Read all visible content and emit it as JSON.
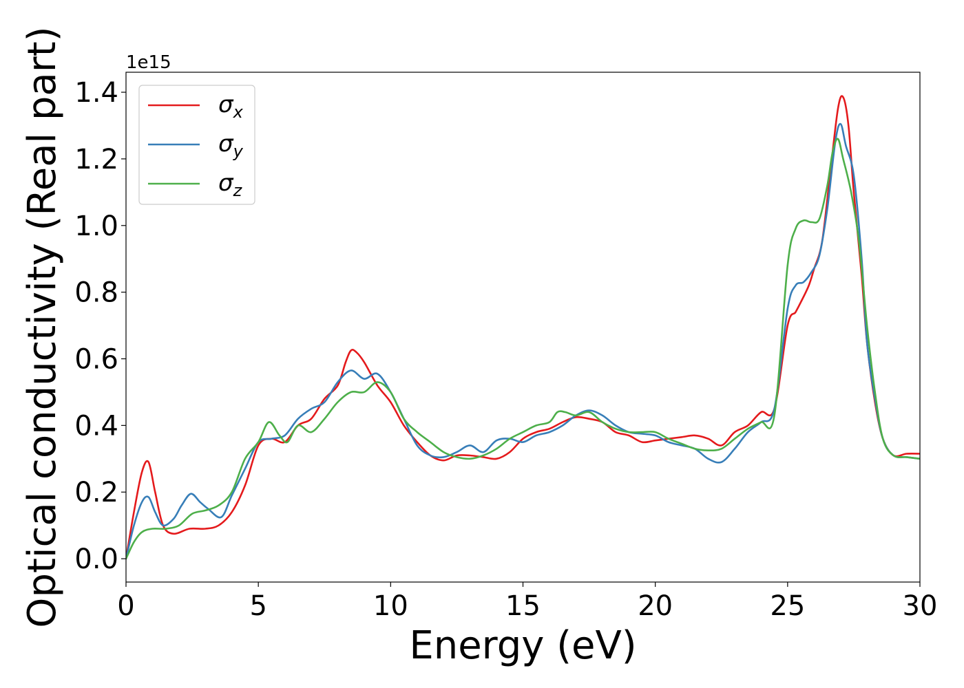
{
  "chart_data": {
    "type": "line",
    "xlabel": "Energy (eV)",
    "ylabel": "Optical conductivity (Real part)",
    "y_offset_label": "1e15",
    "xlim": [
      0,
      30
    ],
    "ylim": [
      -0.07,
      1.46
    ],
    "y_scale_factor": 1000000000000000.0,
    "grid": false,
    "legend_position": "top-left",
    "x_ticks": [
      0,
      5,
      10,
      15,
      20,
      25,
      30
    ],
    "x_tick_labels": [
      "0",
      "5",
      "10",
      "15",
      "20",
      "25",
      "30"
    ],
    "y_ticks": [
      0.0,
      0.2,
      0.4,
      0.6,
      0.8,
      1.0,
      1.2,
      1.4
    ],
    "y_tick_labels": [
      "0.0",
      "0.2",
      "0.4",
      "0.6",
      "0.8",
      "1.0",
      "1.2",
      "1.4"
    ],
    "series": [
      {
        "name": "σx",
        "symbol": "σ",
        "subscript": "x",
        "color": "#e41a1c",
        "x": [
          0,
          0.3,
          0.6,
          0.85,
          1.1,
          1.4,
          1.8,
          2.4,
          3.0,
          3.5,
          4.0,
          4.5,
          5.0,
          5.5,
          6.0,
          6.5,
          7.0,
          7.5,
          8.0,
          8.3,
          8.5,
          8.7,
          9.0,
          9.5,
          10.0,
          10.5,
          11.0,
          11.5,
          12.0,
          12.5,
          13.0,
          13.5,
          14.0,
          14.5,
          15.0,
          15.5,
          16.0,
          16.5,
          17.0,
          17.5,
          18.0,
          18.5,
          19.0,
          19.5,
          20.0,
          20.5,
          21.0,
          21.5,
          22.0,
          22.5,
          23.0,
          23.5,
          24.0,
          24.5,
          25.0,
          25.3,
          25.5,
          25.8,
          26.0,
          26.3,
          26.6,
          26.9,
          27.1,
          27.3,
          27.5,
          27.8,
          28.0,
          28.3,
          28.6,
          29.0,
          29.5,
          30.0
        ],
        "y": [
          0.0,
          0.14,
          0.26,
          0.29,
          0.2,
          0.1,
          0.075,
          0.09,
          0.09,
          0.1,
          0.14,
          0.22,
          0.34,
          0.36,
          0.35,
          0.4,
          0.42,
          0.48,
          0.52,
          0.59,
          0.625,
          0.62,
          0.59,
          0.52,
          0.47,
          0.4,
          0.35,
          0.31,
          0.295,
          0.31,
          0.31,
          0.305,
          0.3,
          0.32,
          0.36,
          0.38,
          0.39,
          0.41,
          0.425,
          0.42,
          0.41,
          0.38,
          0.37,
          0.35,
          0.355,
          0.36,
          0.365,
          0.37,
          0.36,
          0.34,
          0.38,
          0.4,
          0.44,
          0.45,
          0.7,
          0.74,
          0.77,
          0.82,
          0.87,
          0.95,
          1.15,
          1.35,
          1.385,
          1.3,
          1.1,
          0.85,
          0.65,
          0.47,
          0.36,
          0.31,
          0.315,
          0.315
        ]
      },
      {
        "name": "σy",
        "symbol": "σ",
        "subscript": "y",
        "color": "#377eb8",
        "x": [
          0,
          0.3,
          0.6,
          0.85,
          1.1,
          1.4,
          1.8,
          2.1,
          2.45,
          2.8,
          3.1,
          3.6,
          4.0,
          4.5,
          5.0,
          5.5,
          6.0,
          6.5,
          7.0,
          7.5,
          8.0,
          8.5,
          9.0,
          9.5,
          10.0,
          10.5,
          11.0,
          11.5,
          12.0,
          12.5,
          13.0,
          13.5,
          14.0,
          14.5,
          15.0,
          15.5,
          16.0,
          16.5,
          17.0,
          17.5,
          18.0,
          18.5,
          19.0,
          19.5,
          20.0,
          20.5,
          21.0,
          21.5,
          22.0,
          22.5,
          23.0,
          23.5,
          24.0,
          24.5,
          25.0,
          25.3,
          25.6,
          25.9,
          26.2,
          26.5,
          26.8,
          27.0,
          27.2,
          27.5,
          27.8,
          28.0,
          28.3,
          28.6,
          29.0,
          29.5,
          30.0
        ],
        "y": [
          0.0,
          0.1,
          0.17,
          0.185,
          0.14,
          0.1,
          0.12,
          0.16,
          0.195,
          0.17,
          0.15,
          0.125,
          0.19,
          0.27,
          0.35,
          0.36,
          0.37,
          0.42,
          0.45,
          0.47,
          0.53,
          0.565,
          0.54,
          0.555,
          0.5,
          0.42,
          0.34,
          0.31,
          0.305,
          0.32,
          0.34,
          0.32,
          0.355,
          0.36,
          0.35,
          0.37,
          0.38,
          0.4,
          0.43,
          0.445,
          0.43,
          0.4,
          0.38,
          0.375,
          0.37,
          0.35,
          0.34,
          0.33,
          0.3,
          0.29,
          0.33,
          0.38,
          0.41,
          0.45,
          0.75,
          0.82,
          0.83,
          0.86,
          0.91,
          1.05,
          1.25,
          1.305,
          1.24,
          1.15,
          0.9,
          0.65,
          0.48,
          0.36,
          0.31,
          0.305,
          0.3
        ]
      },
      {
        "name": "σz",
        "symbol": "σ",
        "subscript": "z",
        "color": "#4daf4a",
        "x": [
          0,
          0.3,
          0.6,
          1.0,
          1.5,
          2.0,
          2.5,
          3.0,
          3.5,
          4.0,
          4.5,
          5.0,
          5.4,
          5.8,
          6.1,
          6.5,
          7.0,
          7.5,
          8.0,
          8.5,
          9.0,
          9.5,
          10.0,
          10.5,
          11.0,
          11.5,
          12.0,
          12.5,
          13.0,
          13.5,
          14.0,
          14.5,
          15.0,
          15.5,
          16.0,
          16.3,
          16.6,
          17.0,
          17.5,
          18.0,
          18.5,
          19.0,
          19.5,
          20.0,
          20.5,
          21.0,
          21.5,
          22.0,
          22.5,
          23.0,
          23.5,
          24.0,
          24.5,
          25.0,
          25.3,
          25.6,
          25.9,
          26.2,
          26.5,
          26.7,
          26.9,
          27.1,
          27.4,
          27.7,
          28.0,
          28.3,
          28.6,
          29.0,
          29.5,
          30.0
        ],
        "y": [
          0.0,
          0.05,
          0.08,
          0.09,
          0.09,
          0.1,
          0.135,
          0.145,
          0.16,
          0.2,
          0.3,
          0.35,
          0.41,
          0.37,
          0.35,
          0.4,
          0.38,
          0.42,
          0.47,
          0.5,
          0.5,
          0.53,
          0.5,
          0.42,
          0.38,
          0.35,
          0.32,
          0.305,
          0.3,
          0.31,
          0.33,
          0.36,
          0.38,
          0.4,
          0.41,
          0.44,
          0.44,
          0.43,
          0.44,
          0.41,
          0.39,
          0.38,
          0.38,
          0.38,
          0.36,
          0.345,
          0.33,
          0.325,
          0.33,
          0.36,
          0.39,
          0.41,
          0.43,
          0.88,
          0.99,
          1.015,
          1.01,
          1.02,
          1.12,
          1.22,
          1.26,
          1.2,
          1.1,
          0.95,
          0.7,
          0.5,
          0.36,
          0.31,
          0.305,
          0.3
        ]
      }
    ]
  }
}
